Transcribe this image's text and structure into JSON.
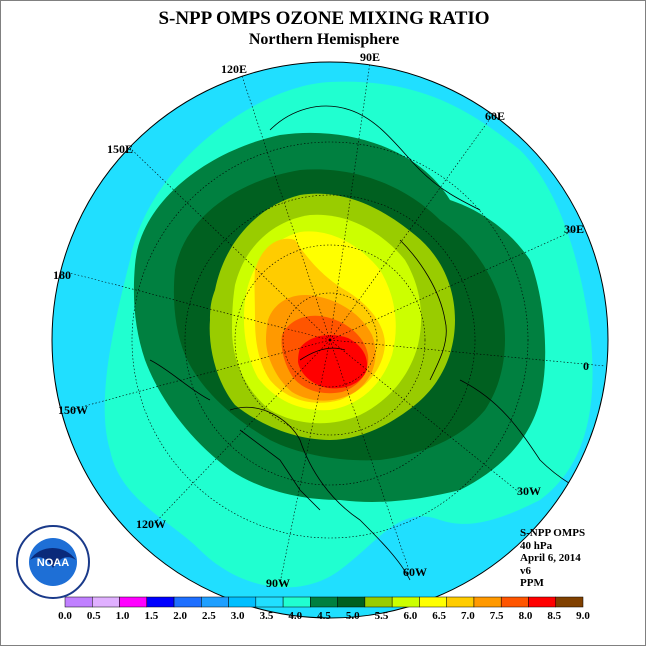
{
  "title": "S-NPP OMPS OZONE MIXING RATIO",
  "subtitle": "Northern Hemisphere",
  "longitude_labels": [
    "90E",
    "60E",
    "30E",
    "0",
    "30W",
    "60W",
    "90W",
    "120W",
    "150W",
    "180",
    "150E",
    "120E"
  ],
  "info": {
    "instrument": "S-NPP OMPS",
    "level": "40 hPa",
    "date": "April 6, 2014",
    "version": "v6",
    "units": "PPM"
  },
  "logo_text": "NOAA",
  "colorbar": {
    "labels": [
      "0.0",
      "0.5",
      "1.0",
      "1.5",
      "2.0",
      "2.5",
      "3.0",
      "3.5",
      "4.0",
      "4.5",
      "5.0",
      "5.5",
      "6.0",
      "6.5",
      "7.0",
      "7.5",
      "8.0",
      "8.5",
      "9.0"
    ],
    "colors": [
      "#c080ff",
      "#e0b0ff",
      "#ff00ff",
      "#0000ff",
      "#1e6fff",
      "#1e9fff",
      "#00bfff",
      "#20dfff",
      "#20ffd0",
      "#008040",
      "#006020",
      "#99cc00",
      "#ccff00",
      "#ffff00",
      "#ffcc00",
      "#ff9900",
      "#ff5500",
      "#ff0000",
      "#804000"
    ]
  },
  "colors": {
    "land_outline": "#000000",
    "background": "#ffffff"
  }
}
